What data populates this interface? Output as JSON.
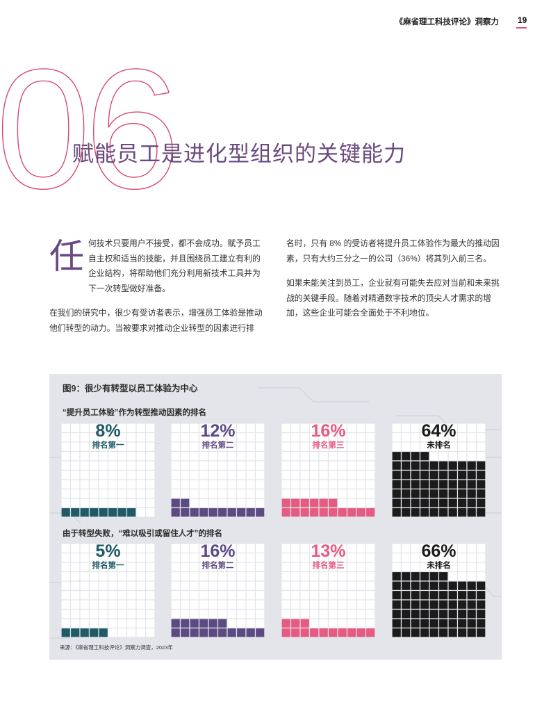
{
  "header": {
    "publication": "《麻省理工科技评论》洞察力",
    "page_number": "19"
  },
  "chapter": {
    "number": "06",
    "title": "赋能员工是进化型组织的关键能力"
  },
  "body": {
    "dropcap": "任",
    "left": [
      "何技术只要用户不接受，都不会成功。赋予员工自主权和适当的技能，并且围绕员工建立有利的企业结构，将帮助他们充分利用新技术工具并为下一次转型做好准备。",
      "在我们的研究中，很少有受访者表示，增强员工体验是推动他们转型的动力。当被要求对推动企业转型的因素进行排"
    ],
    "right": [
      "名时，只有 8% 的受访者将提升员工体验作为最大的推动因素，只有大约三分之一的公司（36%）将其列入前三名。",
      "如果未能关注到员工，企业就有可能失去应对当前和未来挑战的关键手段。随着对精通数字技术的顶尖人才需求的增加，这些企业可能会全面处于不利地位。"
    ]
  },
  "figure": {
    "title": "图9：很少有转型以员工体验为中心",
    "source": "来源：《麻省理工科技评论》洞察力调查，2023年"
  },
  "chart_data": [
    {
      "type": "waffle",
      "title": "“提升员工体验”作为转型推动因素的排名",
      "unit": "%",
      "categories": [
        "排名第一",
        "排名第二",
        "排名第三",
        "未排名"
      ],
      "values": [
        8,
        12,
        16,
        64
      ],
      "labels": [
        "8%",
        "12%",
        "16%",
        "64%"
      ],
      "colors": [
        "#1f5a66",
        "#5c4a82",
        "#e55b81",
        "#1b1b1b"
      ]
    },
    {
      "type": "waffle",
      "title": "由于转型失败，“难以吸引或留住人才”的排名",
      "unit": "%",
      "categories": [
        "排名第一",
        "排名第二",
        "排名第三",
        "未排名"
      ],
      "values": [
        5,
        16,
        13,
        66
      ],
      "labels": [
        "5%",
        "16%",
        "13%",
        "66%"
      ],
      "colors": [
        "#1f5a66",
        "#5c4a82",
        "#e55b81",
        "#1b1b1b"
      ]
    }
  ]
}
